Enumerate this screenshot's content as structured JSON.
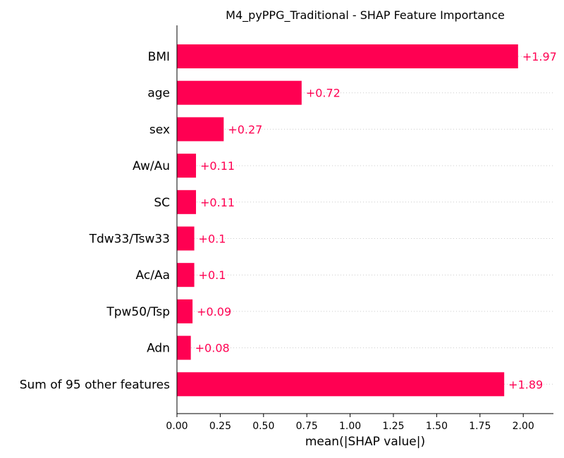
{
  "chart_data": {
    "type": "bar",
    "orientation": "horizontal",
    "title": "M4_pyPPG_Traditional - SHAP Feature Importance",
    "xlabel": "mean(|SHAP value|)",
    "ylabel": "",
    "categories": [
      "BMI",
      "age",
      "sex",
      "Aw/Au",
      "SC",
      "Tdw33/Tsw33",
      "Ac/Aa",
      "Tpw50/Tsp",
      "Adn",
      "Sum of 95 other features"
    ],
    "values": [
      1.97,
      0.72,
      0.27,
      0.11,
      0.11,
      0.1,
      0.1,
      0.09,
      0.08,
      1.89
    ],
    "value_labels": [
      "+1.97",
      "+0.72",
      "+0.27",
      "+0.11",
      "+0.11",
      "+0.1",
      "+0.1",
      "+0.09",
      "+0.08",
      "+1.89"
    ],
    "xlim": [
      0,
      2.18
    ],
    "xticks": [
      "0.00",
      "0.25",
      "0.50",
      "0.75",
      "1.00",
      "1.25",
      "1.50",
      "1.75",
      "2.00"
    ],
    "grid": "horizontal dotted row guides",
    "bar_color": "#ff0052",
    "label_color": "#ff0052"
  }
}
